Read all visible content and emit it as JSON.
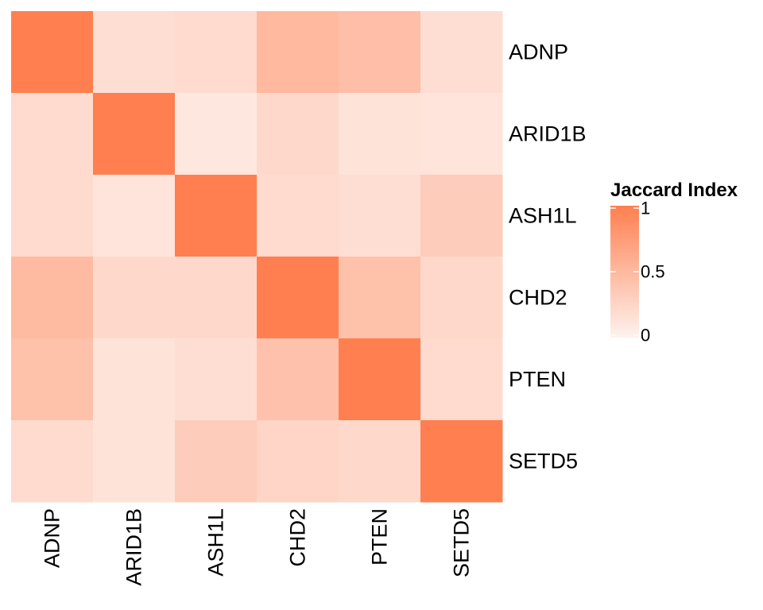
{
  "chart_data": {
    "type": "heatmap",
    "rows": [
      "ADNP",
      "ARID1B",
      "ASH1L",
      "CHD2",
      "PTEN",
      "SETD5"
    ],
    "columns": [
      "ADNP",
      "ARID1B",
      "ASH1L",
      "CHD2",
      "PTEN",
      "SETD5"
    ],
    "values": [
      [
        1.0,
        0.18,
        0.2,
        0.5,
        0.45,
        0.17
      ],
      [
        0.2,
        1.0,
        0.1,
        0.22,
        0.13,
        0.12
      ],
      [
        0.2,
        0.12,
        1.0,
        0.2,
        0.17,
        0.33
      ],
      [
        0.48,
        0.22,
        0.22,
        1.0,
        0.43,
        0.22
      ],
      [
        0.43,
        0.13,
        0.17,
        0.42,
        1.0,
        0.2
      ],
      [
        0.2,
        0.13,
        0.33,
        0.25,
        0.22,
        1.0
      ]
    ],
    "legend": {
      "title": "Jaccard Index",
      "position": "right",
      "range": [
        0,
        1
      ],
      "ticks": [
        {
          "value": 1,
          "label": "1"
        },
        {
          "value": 0.5,
          "label": "0.5"
        },
        {
          "value": 0,
          "label": "0"
        }
      ]
    },
    "color_scale": {
      "low": "#fef2ee",
      "high": "#ff7f50"
    }
  }
}
